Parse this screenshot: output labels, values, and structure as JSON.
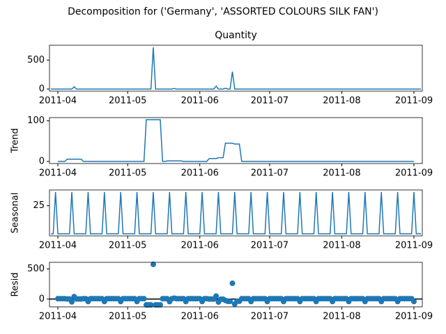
{
  "title": "Decomposition for ('Germany', 'ASSORTED COLOURS SILK FAN')",
  "chart_data": [
    {
      "type": "line",
      "title": "Quantity",
      "color": "#1f77b4",
      "categories": [
        null,
        null,
        null,
        "2011-04",
        null,
        null,
        null,
        null,
        null,
        null,
        null,
        null,
        null,
        null,
        null,
        null,
        null,
        null,
        null,
        null,
        null,
        null,
        null,
        null,
        null,
        null,
        null,
        null,
        null,
        null,
        null,
        null,
        null,
        "2011-05",
        null,
        null,
        null,
        null,
        null,
        null,
        null,
        null,
        null,
        null,
        null,
        null,
        null,
        null,
        null,
        null,
        null,
        null,
        null,
        null,
        null,
        null,
        null,
        null,
        null,
        null,
        null,
        null,
        null,
        null,
        "2011-06",
        null,
        null,
        null,
        null,
        null,
        null,
        null,
        null,
        null,
        null,
        null,
        null,
        null,
        null,
        null,
        null,
        null,
        null,
        null,
        null,
        null,
        null,
        null,
        null,
        null,
        null,
        null,
        null,
        null,
        "2011-07",
        null,
        null,
        null,
        null,
        null,
        null,
        null,
        null,
        null,
        null,
        null,
        null,
        null,
        null,
        null,
        null,
        null,
        null,
        null,
        null,
        null,
        null,
        null,
        null,
        null,
        null,
        null,
        null,
        null,
        null,
        "2011-08",
        null,
        null,
        null,
        null,
        null,
        null,
        null,
        null,
        null,
        null,
        null,
        null,
        null,
        null,
        null,
        null,
        null,
        null,
        null,
        null,
        null,
        null,
        null,
        null,
        null,
        null,
        null,
        null,
        null,
        null,
        "2011-09",
        null,
        null,
        null
      ],
      "values": [
        0,
        0,
        0,
        0,
        0,
        0,
        0,
        0,
        0,
        0,
        40,
        0,
        0,
        0,
        0,
        0,
        0,
        0,
        0,
        0,
        0,
        0,
        0,
        0,
        0,
        0,
        0,
        0,
        0,
        0,
        0,
        0,
        0,
        0,
        0,
        0,
        0,
        0,
        0,
        0,
        0,
        0,
        0,
        0,
        720,
        0,
        0,
        0,
        0,
        0,
        0,
        0,
        0,
        10,
        0,
        0,
        0,
        0,
        0,
        0,
        0,
        0,
        0,
        0,
        0,
        0,
        0,
        0,
        0,
        0,
        0,
        50,
        0,
        0,
        0,
        15,
        0,
        0,
        300,
        0,
        0,
        0,
        0,
        0,
        0,
        0,
        0,
        0,
        0,
        0,
        0,
        0,
        0,
        0,
        0,
        0,
        0,
        0,
        0,
        0,
        0,
        0,
        0,
        0,
        0,
        0,
        0,
        0,
        0,
        0,
        0,
        0,
        0,
        0,
        0,
        0,
        0,
        0,
        0,
        0,
        0,
        0,
        0,
        0,
        0,
        0,
        0,
        0,
        0,
        0,
        0,
        0,
        0,
        0,
        0,
        0,
        0,
        0,
        0,
        0,
        0,
        0,
        0,
        0,
        0,
        0,
        0,
        0,
        0,
        0,
        0,
        0,
        0,
        0,
        0,
        0,
        0,
        0,
        0,
        0
      ],
      "ylim": [
        -36,
        756
      ],
      "yticks": [
        0,
        500
      ]
    },
    {
      "type": "line",
      "ylabel": "Trend",
      "color": "#1f77b4",
      "categories": [
        null,
        null,
        null,
        "2011-04",
        null,
        null,
        null,
        null,
        null,
        null,
        null,
        null,
        null,
        null,
        null,
        null,
        null,
        null,
        null,
        null,
        null,
        null,
        null,
        null,
        null,
        null,
        null,
        null,
        null,
        null,
        null,
        null,
        null,
        "2011-05",
        null,
        null,
        null,
        null,
        null,
        null,
        null,
        null,
        null,
        null,
        null,
        null,
        null,
        null,
        null,
        null,
        null,
        null,
        null,
        null,
        null,
        null,
        null,
        null,
        null,
        null,
        null,
        null,
        null,
        null,
        "2011-06",
        null,
        null,
        null,
        null,
        null,
        null,
        null,
        null,
        null,
        null,
        null,
        null,
        null,
        null,
        null,
        null,
        null,
        null,
        null,
        null,
        null,
        null,
        null,
        null,
        null,
        null,
        null,
        null,
        null,
        "2011-07",
        null,
        null,
        null,
        null,
        null,
        null,
        null,
        null,
        null,
        null,
        null,
        null,
        null,
        null,
        null,
        null,
        null,
        null,
        null,
        null,
        null,
        null,
        null,
        null,
        null,
        null,
        null,
        null,
        null,
        null,
        "2011-08",
        null,
        null,
        null,
        null,
        null,
        null,
        null,
        null,
        null,
        null,
        null,
        null,
        null,
        null,
        null,
        null,
        null,
        null,
        null,
        null,
        null,
        null,
        null,
        null,
        null,
        null,
        null,
        null,
        null,
        null,
        "2011-09",
        null,
        null,
        null
      ],
      "values": [
        null,
        null,
        null,
        0,
        0,
        0,
        0,
        5.7,
        5.7,
        5.7,
        5.7,
        5.7,
        5.7,
        5.7,
        0,
        0,
        0,
        0,
        0,
        0,
        0,
        0,
        0,
        0,
        0,
        0,
        0,
        0,
        0,
        0,
        0,
        0,
        0,
        0,
        0,
        0,
        0,
        0,
        0,
        0,
        0,
        102.9,
        102.9,
        102.9,
        102.9,
        102.9,
        102.9,
        102.9,
        0,
        0,
        1.4,
        1.4,
        1.4,
        1.4,
        1.4,
        1.4,
        1.4,
        0,
        0,
        0,
        0,
        0,
        0,
        0,
        0,
        0,
        0,
        0,
        7.1,
        7.1,
        7.1,
        7.1,
        9.3,
        9.3,
        9.3,
        45,
        45,
        45,
        45,
        42.9,
        42.9,
        42.9,
        0,
        0,
        0,
        0,
        0,
        0,
        0,
        0,
        0,
        0,
        0,
        0,
        0,
        0,
        0,
        0,
        0,
        0,
        0,
        0,
        0,
        0,
        0,
        0,
        0,
        0,
        0,
        0,
        0,
        0,
        0,
        0,
        0,
        0,
        0,
        0,
        0,
        0,
        0,
        0,
        0,
        0,
        0,
        0,
        0,
        0,
        0,
        0,
        0,
        0,
        0,
        0,
        0,
        0,
        0,
        0,
        0,
        0,
        0,
        0,
        0,
        0,
        0,
        0,
        0,
        0,
        0,
        0,
        0,
        0,
        0,
        0,
        0,
        0,
        0,
        null,
        null,
        null
      ],
      "ylim": [
        -5.1,
        108
      ],
      "yticks": [
        0,
        100
      ]
    },
    {
      "type": "line",
      "ylabel": "Seasonal",
      "color": "#1f77b4",
      "categories": [
        null,
        null,
        null,
        "2011-04",
        null,
        null,
        null,
        null,
        null,
        null,
        null,
        null,
        null,
        null,
        null,
        null,
        null,
        null,
        null,
        null,
        null,
        null,
        null,
        null,
        null,
        null,
        null,
        null,
        null,
        null,
        null,
        null,
        null,
        "2011-05",
        null,
        null,
        null,
        null,
        null,
        null,
        null,
        null,
        null,
        null,
        null,
        null,
        null,
        null,
        null,
        null,
        null,
        null,
        null,
        null,
        null,
        null,
        null,
        null,
        null,
        null,
        null,
        null,
        null,
        null,
        "2011-06",
        null,
        null,
        null,
        null,
        null,
        null,
        null,
        null,
        null,
        null,
        null,
        null,
        null,
        null,
        null,
        null,
        null,
        null,
        null,
        null,
        null,
        null,
        null,
        null,
        null,
        null,
        null,
        null,
        null,
        "2011-07",
        null,
        null,
        null,
        null,
        null,
        null,
        null,
        null,
        null,
        null,
        null,
        null,
        null,
        null,
        null,
        null,
        null,
        null,
        null,
        null,
        null,
        null,
        null,
        null,
        null,
        null,
        null,
        null,
        null,
        null,
        "2011-08",
        null,
        null,
        null,
        null,
        null,
        null,
        null,
        null,
        null,
        null,
        null,
        null,
        null,
        null,
        null,
        null,
        null,
        null,
        null,
        null,
        null,
        null,
        null,
        null,
        null,
        null,
        null,
        null,
        null,
        null,
        "2011-09",
        null,
        null,
        null
      ],
      "values": [
        -6.75,
        -6.75,
        40.5,
        -6.75,
        -6.75,
        -6.75,
        -6.75,
        -6.75,
        -6.75,
        40.5,
        -6.75,
        -6.75,
        -6.75,
        -6.75,
        -6.75,
        -6.75,
        40.5,
        -6.75,
        -6.75,
        -6.75,
        -6.75,
        -6.75,
        -6.75,
        40.5,
        -6.75,
        -6.75,
        -6.75,
        -6.75,
        -6.75,
        -6.75,
        40.5,
        -6.75,
        -6.75,
        -6.75,
        -6.75,
        -6.75,
        -6.75,
        40.5,
        -6.75,
        -6.75,
        -6.75,
        -6.75,
        -6.75,
        -6.75,
        40.5,
        -6.75,
        -6.75,
        -6.75,
        -6.75,
        -6.75,
        -6.75,
        40.5,
        -6.75,
        -6.75,
        -6.75,
        -6.75,
        -6.75,
        -6.75,
        40.5,
        -6.75,
        -6.75,
        -6.75,
        -6.75,
        -6.75,
        -6.75,
        40.5,
        -6.75,
        -6.75,
        -6.75,
        -6.75,
        -6.75,
        -6.75,
        40.5,
        -6.75,
        -6.75,
        -6.75,
        -6.75,
        -6.75,
        -6.75,
        40.5,
        -6.75,
        -6.75,
        -6.75,
        -6.75,
        -6.75,
        -6.75,
        40.5,
        -6.75,
        -6.75,
        -6.75,
        -6.75,
        -6.75,
        -6.75,
        40.5,
        -6.75,
        -6.75,
        -6.75,
        -6.75,
        -6.75,
        -6.75,
        40.5,
        -6.75,
        -6.75,
        -6.75,
        -6.75,
        -6.75,
        -6.75,
        40.5,
        -6.75,
        -6.75,
        -6.75,
        -6.75,
        -6.75,
        -6.75,
        40.5,
        -6.75,
        -6.75,
        -6.75,
        -6.75,
        -6.75,
        -6.75,
        40.5,
        -6.75,
        -6.75,
        -6.75,
        -6.75,
        -6.75,
        -6.75,
        40.5,
        -6.75,
        -6.75,
        -6.75,
        -6.75,
        -6.75,
        -6.75,
        40.5,
        -6.75,
        -6.75,
        -6.75,
        -6.75,
        -6.75,
        -6.75,
        40.5,
        -6.75,
        -6.75,
        -6.75,
        -6.75,
        -6.75,
        -6.75,
        40.5,
        -6.75,
        -6.75,
        -6.75,
        -6.75,
        -6.75,
        -6.75,
        40.5,
        -6.75,
        -6.75,
        -6.75
      ],
      "ylim": [
        -9.11,
        42.86
      ],
      "yticks": [
        25
      ]
    },
    {
      "type": "scatter",
      "ylabel": "Resid",
      "color": "#1f77b4",
      "categories": [
        null,
        null,
        null,
        "2011-04",
        null,
        null,
        null,
        null,
        null,
        null,
        null,
        null,
        null,
        null,
        null,
        null,
        null,
        null,
        null,
        null,
        null,
        null,
        null,
        null,
        null,
        null,
        null,
        null,
        null,
        null,
        null,
        null,
        null,
        "2011-05",
        null,
        null,
        null,
        null,
        null,
        null,
        null,
        null,
        null,
        null,
        null,
        null,
        null,
        null,
        null,
        null,
        null,
        null,
        null,
        null,
        null,
        null,
        null,
        null,
        null,
        null,
        null,
        null,
        null,
        null,
        "2011-06",
        null,
        null,
        null,
        null,
        null,
        null,
        null,
        null,
        null,
        null,
        null,
        null,
        null,
        null,
        null,
        null,
        null,
        null,
        null,
        null,
        null,
        null,
        null,
        null,
        null,
        null,
        null,
        null,
        null,
        "2011-07",
        null,
        null,
        null,
        null,
        null,
        null,
        null,
        null,
        null,
        null,
        null,
        null,
        null,
        null,
        null,
        null,
        null,
        null,
        null,
        null,
        null,
        null,
        null,
        null,
        null,
        null,
        null,
        null,
        null,
        null,
        "2011-08",
        null,
        null,
        null,
        null,
        null,
        null,
        null,
        null,
        null,
        null,
        null,
        null,
        null,
        null,
        null,
        null,
        null,
        null,
        null,
        null,
        null,
        null,
        null,
        null,
        null,
        null,
        null,
        null,
        null,
        null,
        "2011-09",
        null,
        null,
        null
      ],
      "values": [
        null,
        null,
        null,
        6.75,
        6.75,
        6.75,
        6.75,
        1.05,
        1.05,
        -46.2,
        41.05,
        1.05,
        1.05,
        1.05,
        6.75,
        6.75,
        -40.5,
        6.75,
        6.75,
        6.75,
        6.75,
        6.75,
        6.75,
        -40.5,
        6.75,
        6.75,
        6.75,
        6.75,
        6.75,
        6.75,
        -40.5,
        6.75,
        6.75,
        6.75,
        6.75,
        6.75,
        6.75,
        -40.5,
        6.75,
        6.75,
        6.75,
        -96.15,
        -96.15,
        -96.15,
        576.6,
        -96.15,
        -96.15,
        -96.15,
        6.75,
        6.75,
        5.35,
        -41.9,
        5.35,
        15.35,
        5.35,
        5.35,
        5.35,
        6.75,
        -40.5,
        6.75,
        6.75,
        6.75,
        6.75,
        6.75,
        6.75,
        -40.5,
        6.75,
        6.75,
        -0.35,
        -0.35,
        -0.35,
        49.65,
        -49.8,
        -2.55,
        -2.55,
        -23.25,
        -38.25,
        -38.25,
        261.75,
        -83.4,
        -36.15,
        -36.15,
        6.75,
        6.75,
        6.75,
        6.75,
        -40.5,
        6.75,
        6.75,
        6.75,
        6.75,
        6.75,
        6.75,
        -40.5,
        6.75,
        6.75,
        6.75,
        6.75,
        6.75,
        6.75,
        -40.5,
        6.75,
        6.75,
        6.75,
        6.75,
        6.75,
        6.75,
        -40.5,
        6.75,
        6.75,
        6.75,
        6.75,
        6.75,
        6.75,
        -40.5,
        6.75,
        6.75,
        6.75,
        6.75,
        6.75,
        6.75,
        -40.5,
        6.75,
        6.75,
        6.75,
        6.75,
        6.75,
        6.75,
        -40.5,
        6.75,
        6.75,
        6.75,
        6.75,
        6.75,
        6.75,
        -40.5,
        6.75,
        6.75,
        6.75,
        6.75,
        6.75,
        6.75,
        -40.5,
        6.75,
        6.75,
        6.75,
        6.75,
        6.75,
        6.75,
        -40.5,
        6.75,
        6.75,
        6.75,
        6.75,
        6.75,
        6.75,
        -40.5,
        null,
        null,
        null
      ],
      "ylim": [
        -129.8,
        610.2
      ],
      "yticks": [
        0,
        500
      ],
      "zero_line": true
    }
  ]
}
